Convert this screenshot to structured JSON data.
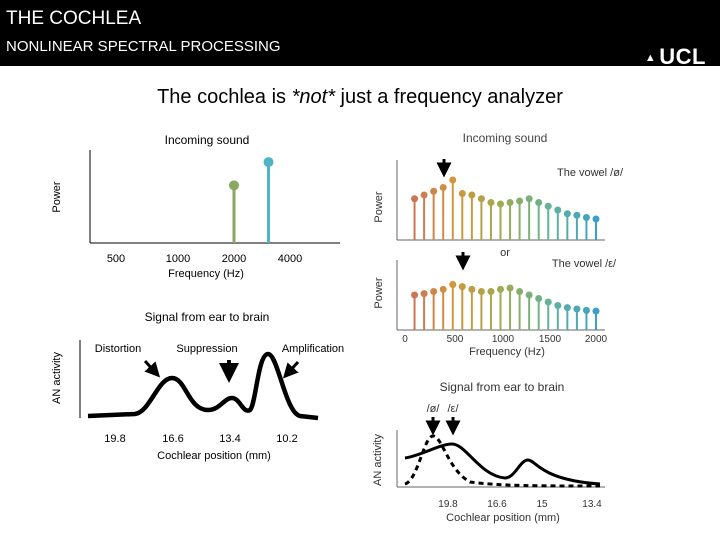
{
  "header": {
    "title": "THE COCHLEA",
    "subtitle": "NONLINEAR SPECTRAL PROCESSING",
    "logo": "UCL",
    "logo_icon": "ucl-crest-icon"
  },
  "headline": {
    "prefix": "The cochlea is ",
    "emphasis": "*not*",
    "suffix": " just a frequency analyzer"
  },
  "colors": {
    "header_bg": "#000000",
    "green": "#8aa862",
    "teal": "#4fb4c4"
  },
  "chart_data": [
    {
      "type": "stem",
      "title": "Incoming sound",
      "xlabel": "Frequency (Hz)",
      "ylabel": "Power",
      "x_scale": "log",
      "xticks": [
        "500",
        "1000",
        "2000",
        "4000"
      ],
      "stems": [
        {
          "x": 2000,
          "y": 0.62,
          "color": "#8aa862"
        },
        {
          "x": 3000,
          "y": 0.87,
          "color": "#4fb4c4"
        }
      ]
    },
    {
      "type": "line",
      "title": "Signal from ear to brain",
      "xlabel": "Cochlear position (mm)",
      "ylabel": "AN activity",
      "xticks": [
        "19.8",
        "16.6",
        "13.4",
        "10.2"
      ],
      "annotations": [
        "Distortion",
        "Suppression",
        "Amplification"
      ]
    },
    {
      "type": "stem",
      "title": "Incoming sound",
      "ylabel": "Power",
      "label": "The vowel /ø/",
      "xlim": [
        0,
        2000
      ],
      "stems": [
        {
          "x": 100,
          "y": 0.55
        },
        {
          "x": 200,
          "y": 0.6
        },
        {
          "x": 300,
          "y": 0.65
        },
        {
          "x": 400,
          "y": 0.7
        },
        {
          "x": 500,
          "y": 0.8
        },
        {
          "x": 600,
          "y": 0.62
        },
        {
          "x": 700,
          "y": 0.6
        },
        {
          "x": 800,
          "y": 0.55
        },
        {
          "x": 900,
          "y": 0.5
        },
        {
          "x": 1000,
          "y": 0.48
        },
        {
          "x": 1100,
          "y": 0.5
        },
        {
          "x": 1200,
          "y": 0.52
        },
        {
          "x": 1300,
          "y": 0.55
        },
        {
          "x": 1400,
          "y": 0.5
        },
        {
          "x": 1500,
          "y": 0.45
        },
        {
          "x": 1600,
          "y": 0.4
        },
        {
          "x": 1700,
          "y": 0.35
        },
        {
          "x": 1800,
          "y": 0.33
        },
        {
          "x": 1900,
          "y": 0.3
        },
        {
          "x": 2000,
          "y": 0.28
        }
      ]
    },
    {
      "type": "stem",
      "ylabel": "Power",
      "label": "The vowel /ε/",
      "divider": "or",
      "xlabel": "Frequency (Hz)",
      "xlim": [
        0,
        2000
      ],
      "xticks": [
        "0",
        "500",
        "1000",
        "1500",
        "2000"
      ],
      "stems": [
        {
          "x": 100,
          "y": 0.5
        },
        {
          "x": 200,
          "y": 0.52
        },
        {
          "x": 300,
          "y": 0.55
        },
        {
          "x": 400,
          "y": 0.58
        },
        {
          "x": 500,
          "y": 0.65
        },
        {
          "x": 600,
          "y": 0.62
        },
        {
          "x": 700,
          "y": 0.58
        },
        {
          "x": 800,
          "y": 0.55
        },
        {
          "x": 900,
          "y": 0.55
        },
        {
          "x": 1000,
          "y": 0.58
        },
        {
          "x": 1100,
          "y": 0.6
        },
        {
          "x": 1200,
          "y": 0.55
        },
        {
          "x": 1300,
          "y": 0.5
        },
        {
          "x": 1400,
          "y": 0.45
        },
        {
          "x": 1500,
          "y": 0.4
        },
        {
          "x": 1600,
          "y": 0.35
        },
        {
          "x": 1700,
          "y": 0.32
        },
        {
          "x": 1800,
          "y": 0.3
        },
        {
          "x": 1900,
          "y": 0.28
        },
        {
          "x": 2000,
          "y": 0.27
        }
      ]
    },
    {
      "type": "line",
      "title": "Signal from ear to brain",
      "xlabel": "Cochlear position (mm)",
      "ylabel": "AN activity",
      "xticks": [
        "19.8",
        "16.6",
        "15",
        "13.4"
      ],
      "legend": [
        "/ø/",
        "/ε/"
      ]
    }
  ]
}
